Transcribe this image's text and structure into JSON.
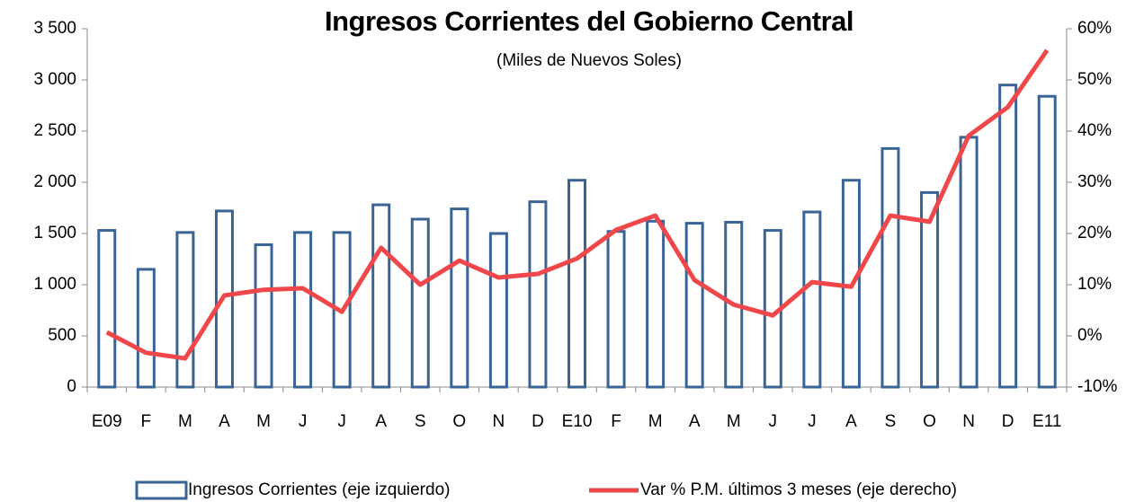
{
  "chart_data": {
    "type": "bar_line",
    "title": "Ingresos Corrientes del Gobierno Central",
    "subtitle": "(Miles de Nuevos Soles)",
    "categories": [
      "E09",
      "F",
      "M",
      "A",
      "M",
      "J",
      "J",
      "A",
      "S",
      "O",
      "N",
      "D",
      "E10",
      "F",
      "M",
      "A",
      "M",
      "J",
      "J",
      "A",
      "S",
      "O",
      "N",
      "D",
      "E11"
    ],
    "series": [
      {
        "name": "Ingresos Corrientes (eje izquierdo)",
        "type": "bar",
        "color": "#3b6496",
        "values": [
          1530,
          1150,
          1510,
          1720,
          1390,
          1510,
          1510,
          1780,
          1640,
          1740,
          1500,
          1810,
          2020,
          1520,
          1620,
          1600,
          1610,
          1530,
          1710,
          2020,
          2330,
          1900,
          2440,
          2950,
          2840
        ]
      },
      {
        "name": "Var % P.M. últimos 3 meses (eje derecho)",
        "type": "line",
        "axis": "y2",
        "color": "#f0474b",
        "values": [
          0.7,
          -3.3,
          -4.4,
          7.9,
          9,
          9.3,
          4.7,
          17.2,
          10,
          14.7,
          11.4,
          12.1,
          15.1,
          20.7,
          23.5,
          10.9,
          6.1,
          4,
          10.5,
          9.6,
          23.5,
          22.3,
          39.1,
          44.7,
          55.8
        ]
      }
    ],
    "ylim": [
      0,
      3500
    ],
    "yticks": [
      0,
      {
        "value": 500,
        "label": "500"
      },
      {
        "value": 1000,
        "label": "1 000"
      },
      {
        "value": 1500,
        "label": "1 500"
      },
      {
        "value": 2000,
        "label": "2 000"
      },
      {
        "value": 2500,
        "label": "2 500"
      },
      {
        "value": 3000,
        "label": "3 000"
      },
      {
        "value": 3500,
        "label": "3 500"
      }
    ],
    "y2lim": [
      -10,
      60
    ],
    "y2ticks": [
      {
        "value": -10,
        "label": "-10%"
      },
      {
        "value": 0,
        "label": "0%"
      },
      {
        "value": 10,
        "label": "10%"
      },
      {
        "value": 20,
        "label": "20%"
      },
      {
        "value": 30,
        "label": "30%"
      },
      {
        "value": 40,
        "label": "40%"
      },
      {
        "value": 50,
        "label": "50%"
      },
      {
        "value": 60,
        "label": "60%"
      }
    ],
    "legend": "bottom"
  }
}
